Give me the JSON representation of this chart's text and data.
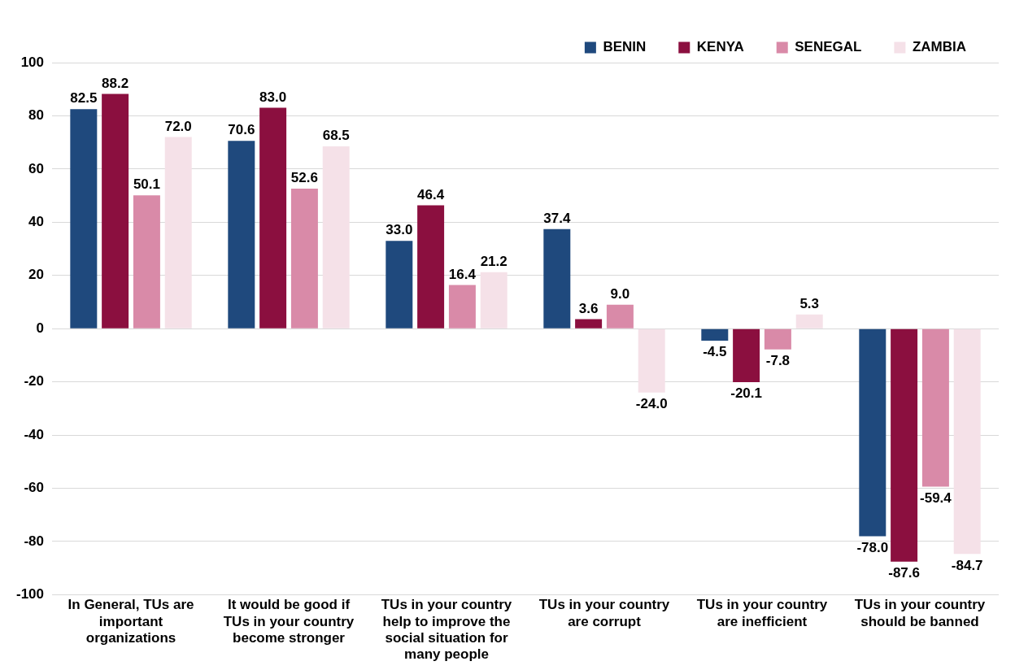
{
  "chart_data": {
    "type": "bar",
    "categories": [
      "In General, TUs are important organizations",
      "It would be good if TUs in your country become stronger",
      "TUs in your country help to improve the social situation for many people",
      "TUs in your country are corrupt",
      "TUs in your country are inefficient",
      "TUs in your country should be banned"
    ],
    "series": [
      {
        "name": "BENIN",
        "color": "#1f497d",
        "values": [
          82.5,
          70.6,
          33.0,
          37.4,
          -4.5,
          -78.0
        ],
        "value_labels": [
          "82.5",
          "70.6",
          "33.0",
          "37.4",
          "-4.5",
          "-78.0"
        ]
      },
      {
        "name": "KENYA",
        "color": "#8b0f3f",
        "values": [
          88.2,
          83.0,
          46.4,
          3.6,
          -20.1,
          -87.6
        ],
        "value_labels": [
          "88.2",
          "83.0",
          "46.4",
          "3.6",
          "-20.1",
          "-87.6"
        ]
      },
      {
        "name": "SENEGAL",
        "color": "#d98aa8",
        "values": [
          50.1,
          52.6,
          16.4,
          9.0,
          -7.8,
          -59.4
        ],
        "value_labels": [
          "50.1",
          "52.6",
          "16.4",
          "9.0",
          "-7.8",
          "-59.4"
        ]
      },
      {
        "name": "ZAMBIA",
        "color": "#f5e1e8",
        "values": [
          72.0,
          68.5,
          21.2,
          -24.0,
          5.3,
          -84.7
        ],
        "value_labels": [
          "72.0",
          "68.5",
          "21.2",
          "-24.0",
          "5.3",
          "-84.7"
        ]
      }
    ],
    "ylim": [
      -100,
      100
    ],
    "yticks": [
      -100,
      -80,
      -60,
      -40,
      -20,
      0,
      20,
      40,
      60,
      80,
      100
    ],
    "grid": "y",
    "legend": "top right"
  }
}
